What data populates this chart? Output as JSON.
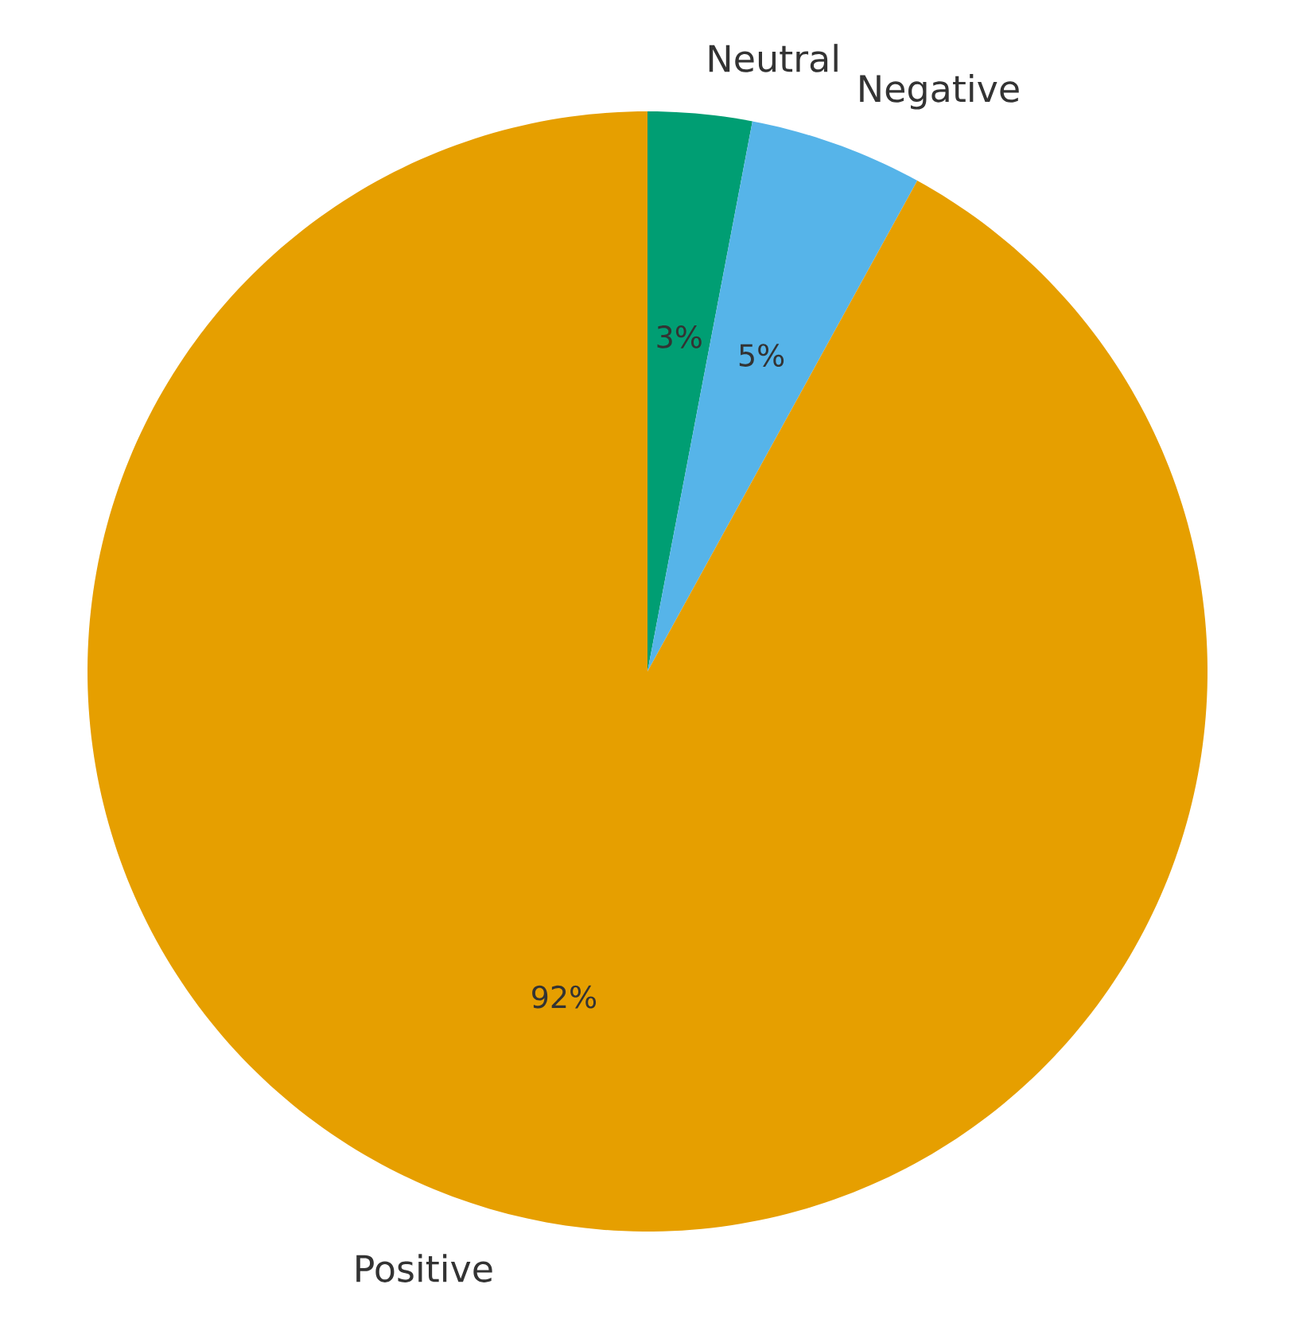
{
  "chart_data": {
    "type": "pie",
    "categories": [
      "Neutral",
      "Negative",
      "Positive"
    ],
    "values": [
      3,
      5,
      92
    ],
    "colors": [
      "#009e73",
      "#56b4e9",
      "#e69f00"
    ],
    "value_labels": [
      "3%",
      "5%",
      "92%"
    ]
  }
}
